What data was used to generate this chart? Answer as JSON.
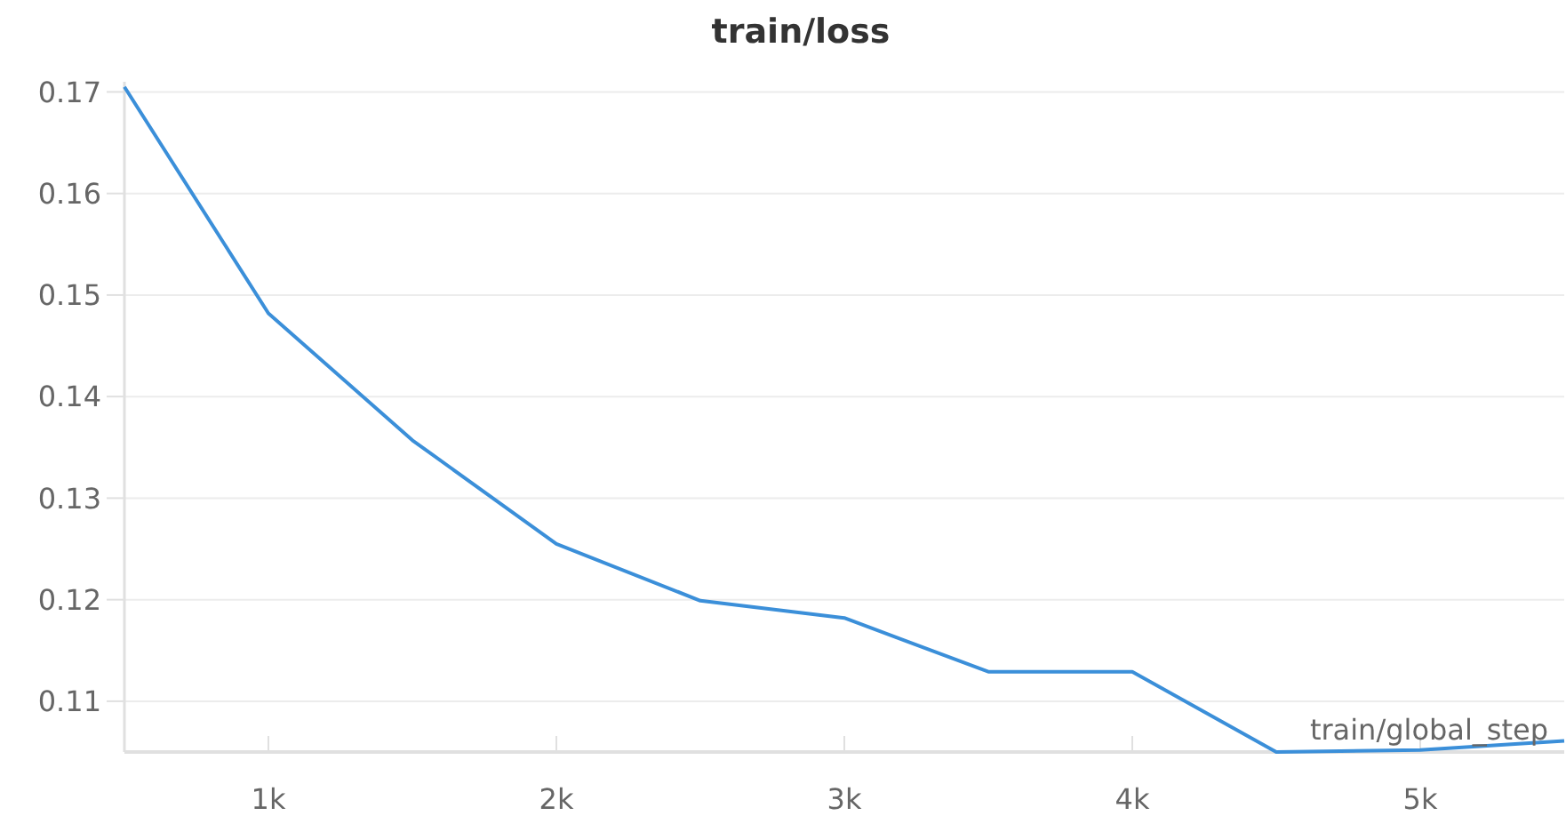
{
  "chart_data": {
    "type": "line",
    "title": "train/loss",
    "xlabel": "train/global_step",
    "x": [
      500,
      1000,
      1500,
      2000,
      2500,
      3000,
      3500,
      4000,
      4500,
      5000,
      5500
    ],
    "series": [
      {
        "color": "#3b8fd9",
        "values": [
          0.1705,
          0.1482,
          0.1357,
          0.1255,
          0.1199,
          0.1182,
          0.1129,
          0.1129,
          0.105,
          0.1052,
          0.1061
        ]
      }
    ],
    "xlim": [
      500,
      5500
    ],
    "xticks": [
      {
        "value": 1000,
        "label": "1k"
      },
      {
        "value": 2000,
        "label": "2k"
      },
      {
        "value": 3000,
        "label": "3k"
      },
      {
        "value": 4000,
        "label": "4k"
      },
      {
        "value": 5000,
        "label": "5k"
      }
    ],
    "ylim": [
      0.105,
      0.171
    ],
    "yticks": [
      0.11,
      0.12,
      0.13,
      0.14,
      0.15,
      0.16,
      0.17
    ],
    "grid": "y",
    "marker": "none",
    "line_style": "solid"
  }
}
